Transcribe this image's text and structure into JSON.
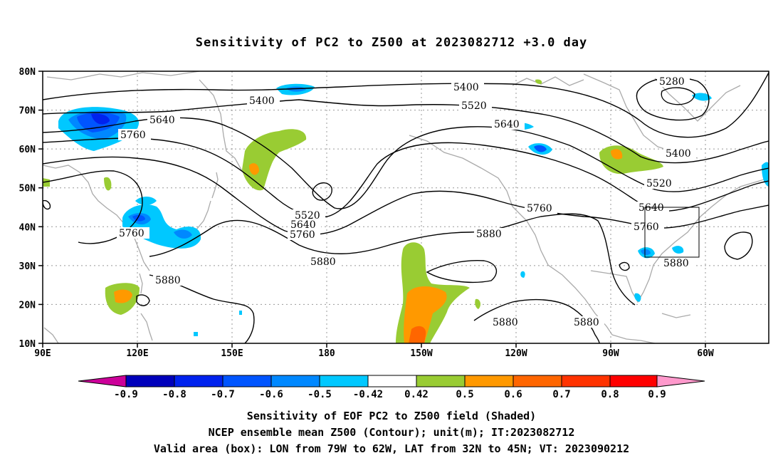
{
  "title": "Sensitivity of PC2 to Z500 at 2023082712 +3.0 day",
  "map": {
    "lat_labels": [
      "80N",
      "70N",
      "60N",
      "50N",
      "40N",
      "30N",
      "20N",
      "10N"
    ],
    "lon_labels": [
      "90E",
      "120E",
      "150E",
      "180",
      "150W",
      "120W",
      "90W",
      "60W"
    ],
    "contour_labels": [
      "5280",
      "5400",
      "5400",
      "5400",
      "5520",
      "5520",
      "5520",
      "5640",
      "5640",
      "5640",
      "5640",
      "5760",
      "5760",
      "5760",
      "5760",
      "5760",
      "5880",
      "5880",
      "5880",
      "5880",
      "5880",
      "5880"
    ],
    "box": {
      "lon_range": [
        "79W",
        "62W"
      ],
      "lat_range": [
        "32N",
        "45N"
      ]
    }
  },
  "colorbar": {
    "labels": [
      "-0.9",
      "-0.8",
      "-0.7",
      "-0.6",
      "-0.5",
      "-0.42",
      "0.42",
      "0.5",
      "0.6",
      "0.7",
      "0.8",
      "0.9"
    ],
    "colors": [
      "#cc0099",
      "#0000bb",
      "#0022ee",
      "#0055ff",
      "#0088ff",
      "#00c8ff",
      "#ffffff",
      "#99cc33",
      "#ff9900",
      "#ff6600",
      "#ff3300",
      "#ff0000",
      "#ff99cc"
    ]
  },
  "captions": {
    "line1": "Sensitivity of EOF PC2 to Z500 field (Shaded)",
    "line2": "NCEP ensemble mean Z500 (Contour); unit(m); IT:2023082712",
    "line3": "Valid area (box): LON from 79W to 62W, LAT from 32N to 45N; VT: 2023090212"
  }
}
